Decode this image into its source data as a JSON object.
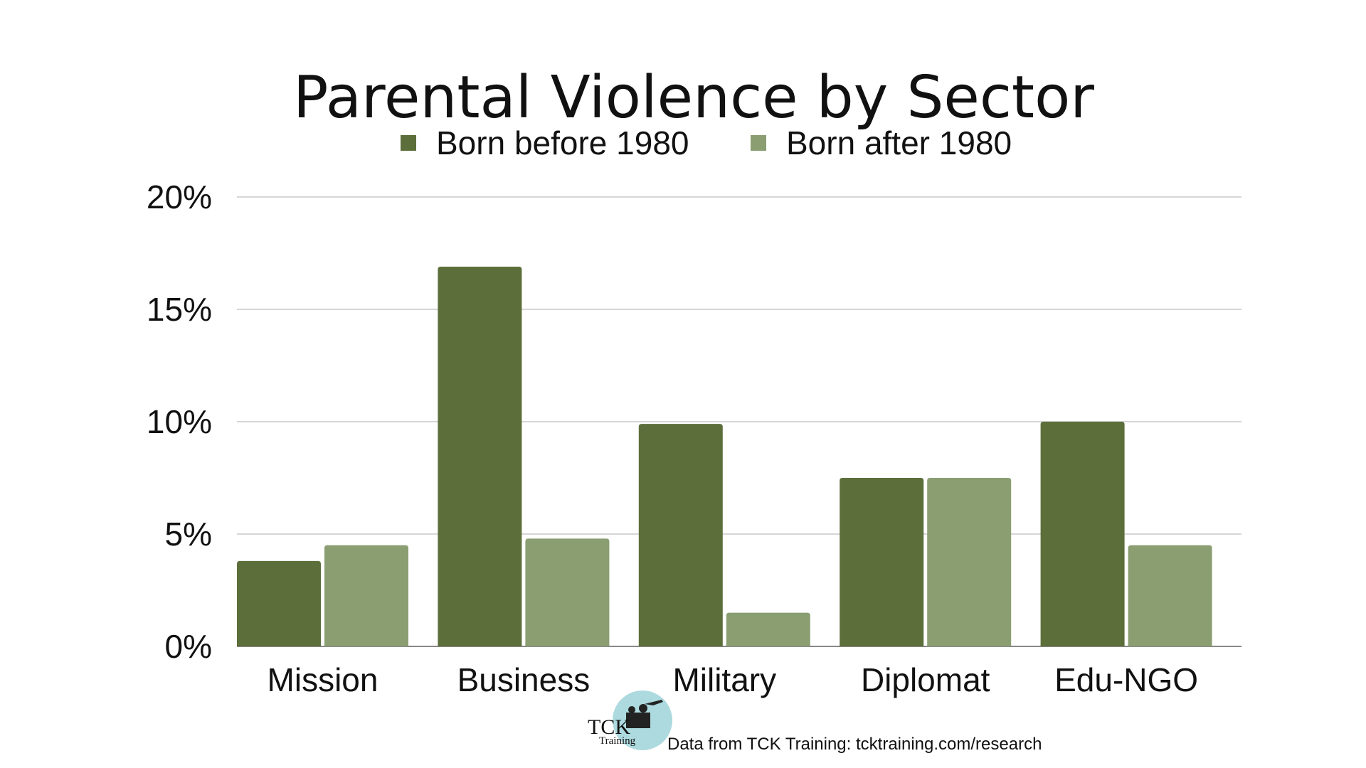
{
  "chart_data": {
    "type": "bar",
    "title": "Parental Violence by Sector",
    "xlabel": "",
    "ylabel": "",
    "categories": [
      "Mission",
      "Business",
      "Military",
      "Diplomat",
      "Edu-NGO"
    ],
    "series": [
      {
        "name": "Born before 1980",
        "values": [
          3.8,
          16.9,
          9.9,
          7.5,
          10.0
        ],
        "color": "#5c6e3a"
      },
      {
        "name": "Born after 1980",
        "values": [
          4.5,
          4.8,
          1.5,
          7.5,
          4.5
        ],
        "color": "#8a9e72"
      }
    ],
    "ylim": [
      0,
      20
    ],
    "yticks": [
      0,
      5,
      10,
      15,
      20
    ],
    "ytick_labels": [
      "0%",
      "5%",
      "10%",
      "15%",
      "20%"
    ],
    "grid": true,
    "legend_position": "top-center",
    "gridline_color": "#c8c8c8",
    "axis_color": "#888888"
  },
  "footer": {
    "source_text": "Data from TCK Training: tcktraining.com/research",
    "logo_line1": "TCK",
    "logo_line2": "Training"
  }
}
